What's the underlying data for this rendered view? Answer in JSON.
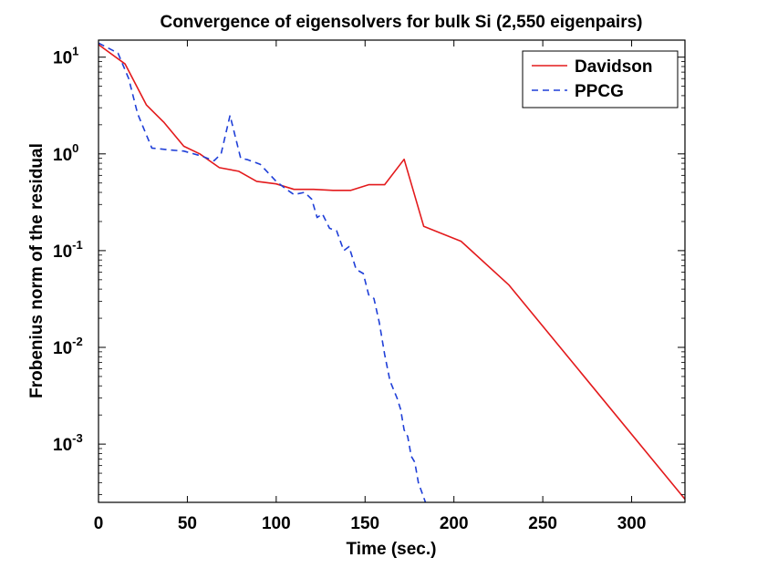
{
  "chart_data": {
    "type": "line",
    "title": "Convergence of eigensolvers for bulk Si (2,550 eigenpairs)",
    "xlabel": "Time (sec.)",
    "ylabel": "Frobenius norm of the residual",
    "yscale": "log",
    "xlim": [
      0,
      330
    ],
    "ylim": [
      0.00025,
      15
    ],
    "grid": false,
    "legend_position": "top-right",
    "x_ticks": [
      0,
      50,
      100,
      150,
      200,
      250,
      300
    ],
    "x_tick_labels": [
      "0",
      "50",
      "100",
      "150",
      "200",
      "250",
      "300"
    ],
    "y_ticks": [
      {
        "value": 10,
        "base": "10",
        "exp": "1"
      },
      {
        "value": 1,
        "base": "10",
        "exp": "0"
      },
      {
        "value": 0.1,
        "base": "10",
        "exp": "-1"
      },
      {
        "value": 0.01,
        "base": "10",
        "exp": "-2"
      },
      {
        "value": 0.001,
        "base": "10",
        "exp": "-3"
      }
    ],
    "series": [
      {
        "name": "Davidson",
        "color": "#e31a1c",
        "dash": "solid",
        "points": [
          [
            0,
            13.5
          ],
          [
            15,
            8.5
          ],
          [
            27,
            3.2
          ],
          [
            37,
            2.1
          ],
          [
            48,
            1.2
          ],
          [
            57,
            1.0
          ],
          [
            68,
            0.72
          ],
          [
            79,
            0.66
          ],
          [
            89,
            0.52
          ],
          [
            100,
            0.49
          ],
          [
            110,
            0.43
          ],
          [
            121,
            0.43
          ],
          [
            132,
            0.42
          ],
          [
            142,
            0.42
          ],
          [
            152,
            0.48
          ],
          [
            161,
            0.48
          ],
          [
            172,
            0.88
          ],
          [
            183,
            0.178
          ],
          [
            204,
            0.125
          ],
          [
            231,
            0.044
          ],
          [
            330,
            0.00027
          ]
        ]
      },
      {
        "name": "PPCG",
        "color": "#1f3fd8",
        "dash": "dashed",
        "points": [
          [
            0,
            14
          ],
          [
            11,
            11
          ],
          [
            17,
            6
          ],
          [
            22,
            2.6
          ],
          [
            30,
            1.15
          ],
          [
            40,
            1.1
          ],
          [
            48,
            1.07
          ],
          [
            58,
            0.95
          ],
          [
            65,
            0.85
          ],
          [
            69,
            1.0
          ],
          [
            74,
            2.5
          ],
          [
            80,
            0.9
          ],
          [
            84,
            0.87
          ],
          [
            91,
            0.78
          ],
          [
            100,
            0.52
          ],
          [
            105,
            0.44
          ],
          [
            110,
            0.38
          ],
          [
            116,
            0.4
          ],
          [
            120,
            0.34
          ],
          [
            123,
            0.22
          ],
          [
            126,
            0.24
          ],
          [
            130,
            0.17
          ],
          [
            134,
            0.16
          ],
          [
            138,
            0.1
          ],
          [
            141,
            0.11
          ],
          [
            145,
            0.064
          ],
          [
            149,
            0.058
          ],
          [
            152,
            0.035
          ],
          [
            155,
            0.032
          ],
          [
            158,
            0.018
          ],
          [
            161,
            0.0085
          ],
          [
            164,
            0.0045
          ],
          [
            168,
            0.003
          ],
          [
            170,
            0.0023
          ],
          [
            172,
            0.0014
          ],
          [
            174,
            0.0012
          ],
          [
            176,
            0.00075
          ],
          [
            178,
            0.00065
          ],
          [
            180,
            0.0004
          ],
          [
            184,
            0.00025
          ]
        ]
      }
    ]
  }
}
